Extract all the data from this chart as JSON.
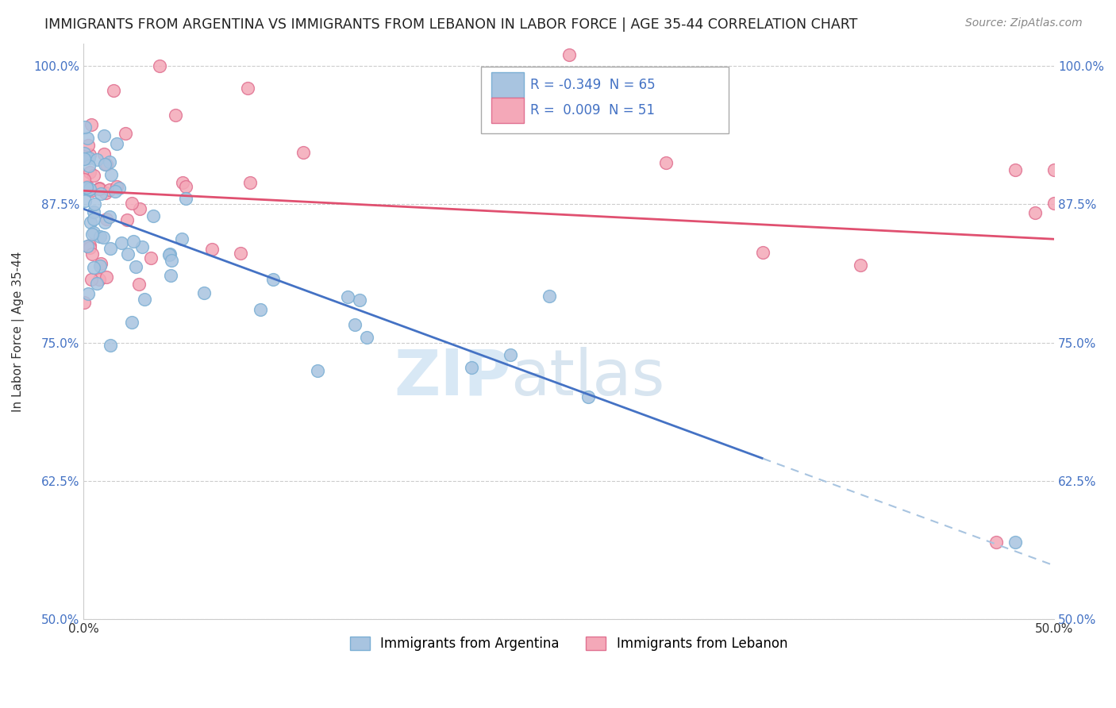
{
  "title": "IMMIGRANTS FROM ARGENTINA VS IMMIGRANTS FROM LEBANON IN LABOR FORCE | AGE 35-44 CORRELATION CHART",
  "source": "Source: ZipAtlas.com",
  "ylabel": "In Labor Force | Age 35-44",
  "xlim": [
    0.0,
    0.5
  ],
  "ylim": [
    0.5,
    1.02
  ],
  "xticks": [
    0.0,
    0.5
  ],
  "xticklabels": [
    "0.0%",
    "50.0%"
  ],
  "yticks": [
    0.5,
    0.625,
    0.75,
    0.875,
    1.0
  ],
  "yticklabels": [
    "50.0%",
    "62.5%",
    "75.0%",
    "87.5%",
    "100.0%"
  ],
  "grid_color": "#cccccc",
  "background_color": "#ffffff",
  "argentina_color": "#a8c4e0",
  "argentina_edge": "#7bafd4",
  "lebanon_color": "#f4a8b8",
  "lebanon_edge": "#e07090",
  "argentina_line_color": "#4472c4",
  "lebanon_line_color": "#e05070",
  "R_argentina": -0.349,
  "N_argentina": 65,
  "R_lebanon": 0.009,
  "N_lebanon": 51,
  "legend_R_color": "#4472c4",
  "tick_color": "#4472c4",
  "argentina_line_solid_end": 0.35,
  "argentina_line_dashed_end": 0.5
}
